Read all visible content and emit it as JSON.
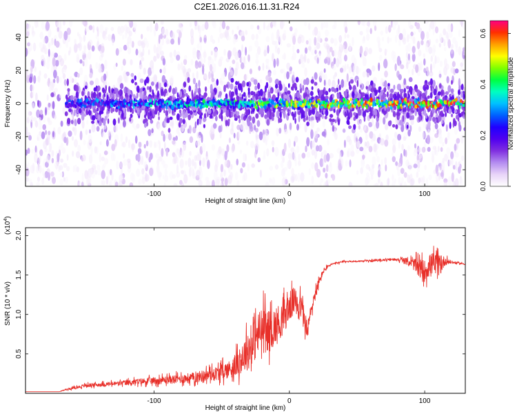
{
  "title": "C2E1.2026.016.11.31.R24",
  "chart_data": [
    {
      "type": "heatmap",
      "panel": "spectrogram",
      "xlabel": "Height of straight line (km)",
      "ylabel": "Frequency (Hz)",
      "xlim": [
        -195,
        130
      ],
      "ylim": [
        -50,
        50
      ],
      "xticks": [
        -100,
        0,
        100
      ],
      "xtick_labels": [
        "-100",
        "0",
        "100"
      ],
      "yticks": [
        -40,
        -20,
        0,
        20,
        40
      ],
      "ytick_labels": [
        "-40",
        "-20",
        "0",
        "20",
        "40"
      ],
      "description": "Scattered spectral energy across all frequencies; a coherent high-amplitude band centered at 0 Hz (about ±3 Hz) emerges from about -165 km and strengthens toward higher heights; dense low-frequency-independent noise region below -165 km.",
      "colorbar": {
        "label": "Normalized spectral amplitude",
        "range": [
          0,
          0.65
        ],
        "ticks": [
          0,
          0.2,
          0.4,
          0.6
        ],
        "tick_labels": [
          "0.0",
          "0.2",
          "0.4",
          "0.6"
        ],
        "colormap": [
          "#ffffff",
          "#e8d4f8",
          "#b48cf0",
          "#8030e0",
          "#5000f0",
          "#2000ff",
          "#0060ff",
          "#00c0ff",
          "#00ffc0",
          "#00ff40",
          "#80ff00",
          "#ffff00",
          "#ffa000",
          "#ff3000",
          "#ff0080"
        ]
      },
      "zero_band": [
        {
          "x": -160,
          "amp": 0.28
        },
        {
          "x": -120,
          "amp": 0.33
        },
        {
          "x": -80,
          "amp": 0.38
        },
        {
          "x": -40,
          "amp": 0.42
        },
        {
          "x": 0,
          "amp": 0.48
        },
        {
          "x": 20,
          "amp": 0.55
        },
        {
          "x": 40,
          "amp": 0.55
        },
        {
          "x": 60,
          "amp": 0.58
        },
        {
          "x": 80,
          "amp": 0.6
        },
        {
          "x": 100,
          "amp": 0.6
        },
        {
          "x": 120,
          "amp": 0.62
        }
      ]
    },
    {
      "type": "line",
      "panel": "snr",
      "xlabel": "Height of straight line (km)",
      "ylabel": "SNR (10 * v/v)",
      "scale_label": "(x10",
      "scale_exponent": "4",
      "xlim": [
        -195,
        130
      ],
      "ylim": [
        0,
        2.1
      ],
      "xticks": [
        -100,
        0,
        100
      ],
      "xtick_labels": [
        "-100",
        "0",
        "100"
      ],
      "yticks": [
        0.5,
        1.0,
        1.5,
        2.0
      ],
      "ytick_labels": [
        "0.5",
        "1.0",
        "1.5",
        "2.0"
      ],
      "color": "#e8302a",
      "series": [
        {
          "name": "SNR",
          "x": [
            -195,
            -170,
            -165,
            -150,
            -130,
            -110,
            -90,
            -70,
            -55,
            -45,
            -40,
            -35,
            -30,
            -25,
            -20,
            -15,
            -10,
            -5,
            0,
            5,
            10,
            13,
            15,
            18,
            22,
            25,
            30,
            40,
            60,
            80,
            90,
            95,
            100,
            105,
            110,
            115,
            120,
            125,
            130
          ],
          "y": [
            0.02,
            0.02,
            0.05,
            0.1,
            0.12,
            0.15,
            0.17,
            0.2,
            0.25,
            0.3,
            0.35,
            0.45,
            0.55,
            0.7,
            0.8,
            0.8,
            0.85,
            0.95,
            1.1,
            1.2,
            1.05,
            0.75,
            0.95,
            1.2,
            1.4,
            1.55,
            1.63,
            1.67,
            1.68,
            1.7,
            1.66,
            1.6,
            1.55,
            1.65,
            1.6,
            1.68,
            1.66,
            1.65,
            1.64
          ],
          "noise": [
            0,
            0,
            0.02,
            0.04,
            0.05,
            0.07,
            0.09,
            0.12,
            0.15,
            0.2,
            0.25,
            0.35,
            0.45,
            0.5,
            0.55,
            0.45,
            0.45,
            0.4,
            0.35,
            0.3,
            0.25,
            0.2,
            0.2,
            0.15,
            0.12,
            0.06,
            0.03,
            0.02,
            0.02,
            0.03,
            0.1,
            0.2,
            0.25,
            0.25,
            0.3,
            0.1,
            0.03,
            0.02,
            0.02
          ]
        }
      ]
    }
  ]
}
